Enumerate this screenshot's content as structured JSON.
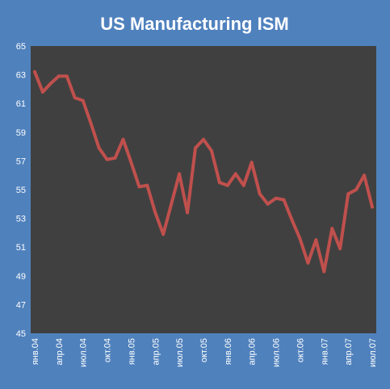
{
  "chart_data": {
    "type": "line",
    "title": "US Manufacturing ISM",
    "xlabel": "",
    "ylabel": "",
    "ylim": [
      45,
      65
    ],
    "y_ticks": [
      "45",
      "47",
      "49",
      "51",
      "53",
      "55",
      "57",
      "59",
      "61",
      "63",
      "65"
    ],
    "grid": false,
    "legend": "none",
    "x_tick_labels": [
      {
        "index": 0,
        "label": "янв.04"
      },
      {
        "index": 3,
        "label": "апр.04"
      },
      {
        "index": 6,
        "label": "июл.04"
      },
      {
        "index": 9,
        "label": "окт.04"
      },
      {
        "index": 12,
        "label": "янв.05"
      },
      {
        "index": 15,
        "label": "апр.05"
      },
      {
        "index": 18,
        "label": "июл.05"
      },
      {
        "index": 21,
        "label": "окт.05"
      },
      {
        "index": 24,
        "label": "янв.06"
      },
      {
        "index": 27,
        "label": "апр.06"
      },
      {
        "index": 30,
        "label": "июл.06"
      },
      {
        "index": 33,
        "label": "окт.06"
      },
      {
        "index": 36,
        "label": "янв.07"
      },
      {
        "index": 39,
        "label": "апр.07"
      },
      {
        "index": 42,
        "label": "июл.07"
      }
    ],
    "categories": [
      "янв.04",
      "фев.04",
      "мар.04",
      "апр.04",
      "май.04",
      "июн.04",
      "июл.04",
      "авг.04",
      "сен.04",
      "окт.04",
      "ноя.04",
      "дек.04",
      "янв.05",
      "фев.05",
      "мар.05",
      "апр.05",
      "май.05",
      "июн.05",
      "июл.05",
      "авг.05",
      "сен.05",
      "окт.05",
      "ноя.05",
      "дек.05",
      "янв.06",
      "фев.06",
      "мар.06",
      "апр.06",
      "май.06",
      "июн.06",
      "июл.06",
      "авг.06",
      "сен.06",
      "окт.06",
      "ноя.06",
      "дек.06",
      "янв.07",
      "фев.07",
      "мар.07",
      "апр.07",
      "май.07",
      "июн.07",
      "июл.07"
    ],
    "series": [
      {
        "values": [
          63.2,
          61.8,
          62.4,
          62.9,
          62.9,
          61.4,
          61.2,
          59.6,
          57.9,
          57.1,
          57.2,
          58.5,
          56.9,
          55.2,
          55.3,
          53.4,
          51.9,
          54.0,
          56.1,
          53.4,
          57.9,
          58.5,
          57.7,
          55.5,
          55.3,
          56.1,
          55.3,
          56.9,
          54.7,
          54.0,
          54.4,
          54.3,
          52.9,
          51.6,
          49.9,
          51.5,
          49.3,
          52.3,
          50.9,
          54.7,
          55.0,
          56.0,
          53.8
        ]
      }
    ],
    "colors": {
      "background": "#4f81bd",
      "plot_area": "#404040",
      "line": "#c0504d",
      "text": "#ffffff"
    }
  }
}
